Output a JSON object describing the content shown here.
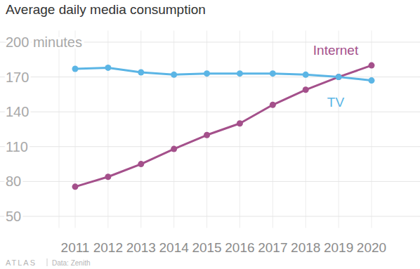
{
  "chart_data": {
    "type": "line",
    "title": "Average daily media consumption",
    "credit": "ATLAS",
    "source": "Data: Zenith",
    "categories": [
      "2011",
      "2012",
      "2013",
      "2014",
      "2015",
      "2016",
      "2017",
      "2018",
      "2019",
      "2020"
    ],
    "series": [
      {
        "name": "Internet",
        "color": "#a4508b",
        "values": [
          75.5,
          84,
          95,
          108,
          120,
          130,
          146,
          159,
          170,
          180
        ]
      },
      {
        "name": "TV",
        "color": "#5bb5e5",
        "values": [
          177,
          178,
          174,
          172,
          173,
          173,
          173,
          172,
          170,
          167
        ]
      }
    ],
    "ylim": [
      40,
      210
    ],
    "yticks": [
      50,
      80,
      110,
      140,
      170,
      {
        "value": 200,
        "label": "200 minutes"
      }
    ],
    "grid": true,
    "marker": "circle"
  }
}
